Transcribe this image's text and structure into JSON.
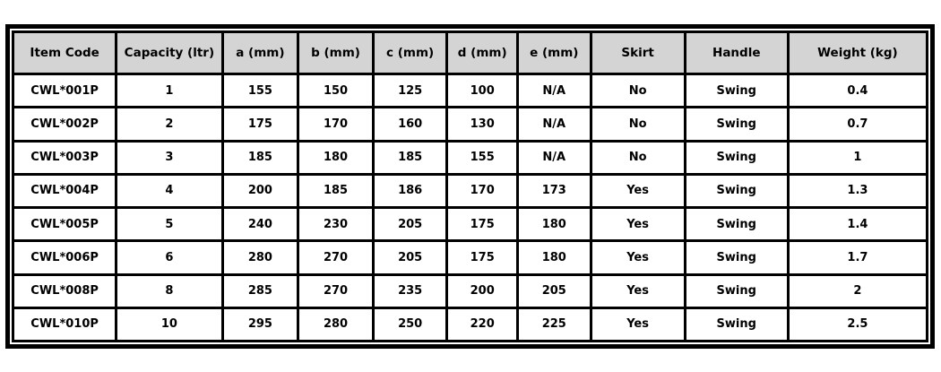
{
  "colors": {
    "header_bg": "#d4d4d4",
    "cell_bg": "#ffffff",
    "border": "#000000",
    "page_bg": "#ffffff",
    "text": "#000000"
  },
  "chart_data": {
    "type": "table",
    "title": "",
    "columns": [
      "Item Code",
      "Capacity (ltr)",
      "a (mm)",
      "b (mm)",
      "c (mm)",
      "d (mm)",
      "e (mm)",
      "Skirt",
      "Handle",
      "Weight (kg)"
    ],
    "rows": [
      [
        "CWL*001P",
        "1",
        "155",
        "150",
        "125",
        "100",
        "N/A",
        "No",
        "Swing",
        "0.4"
      ],
      [
        "CWL*002P",
        "2",
        "175",
        "170",
        "160",
        "130",
        "N/A",
        "No",
        "Swing",
        "0.7"
      ],
      [
        "CWL*003P",
        "3",
        "185",
        "180",
        "185",
        "155",
        "N/A",
        "No",
        "Swing",
        "1"
      ],
      [
        "CWL*004P",
        "4",
        "200",
        "185",
        "186",
        "170",
        "173",
        "Yes",
        "Swing",
        "1.3"
      ],
      [
        "CWL*005P",
        "5",
        "240",
        "230",
        "205",
        "175",
        "180",
        "Yes",
        "Swing",
        "1.4"
      ],
      [
        "CWL*006P",
        "6",
        "280",
        "270",
        "205",
        "175",
        "180",
        "Yes",
        "Swing",
        "1.7"
      ],
      [
        "CWL*008P",
        "8",
        "285",
        "270",
        "235",
        "200",
        "205",
        "Yes",
        "Swing",
        "2"
      ],
      [
        "CWL*010P",
        "10",
        "295",
        "280",
        "250",
        "220",
        "225",
        "Yes",
        "Swing",
        "2.5"
      ]
    ]
  }
}
